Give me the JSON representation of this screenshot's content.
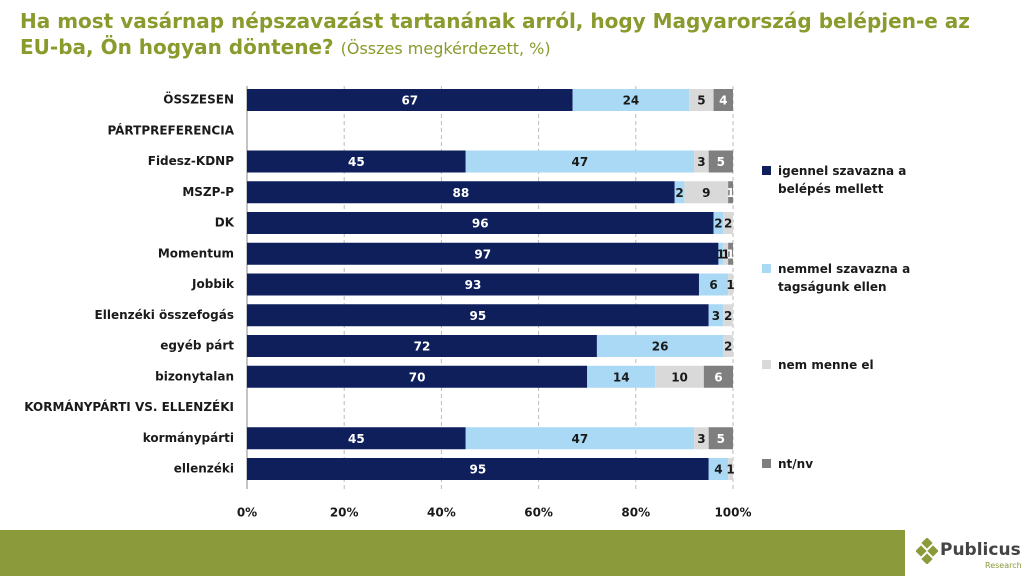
{
  "chart_data": {
    "type": "stacked-barh",
    "title": "Ha most vasárnap népszavazást tartanának arról, hogy Magyarország belépjen-e az EU-ba, Ön hogyan döntene?",
    "subtitle": "(Összes megkérdezett, %)",
    "categories": [
      "ÖSSZESEN",
      "PÁRTPREFERENCIA",
      "Fidesz-KDNP",
      "MSZP-P",
      "DK",
      "Momentum",
      "Jobbik",
      "Ellenzéki összefogás",
      "egyéb párt",
      "bizonytalan",
      "KORMÁNYPÁRTI VS. ELLENZÉKI",
      "kormánypárti",
      "ellenzéki"
    ],
    "series": [
      {
        "name": "igennel szavazna a belépés mellett",
        "color": "#0e1f5b",
        "values": [
          67,
          null,
          45,
          88,
          96,
          97,
          93,
          95,
          72,
          70,
          null,
          45,
          95
        ]
      },
      {
        "name": "nemmel szavazna a tagságunk ellen",
        "color": "#a9d9f5",
        "values": [
          24,
          null,
          47,
          2,
          2,
          1,
          6,
          3,
          26,
          14,
          null,
          47,
          4
        ]
      },
      {
        "name": "nem menne el",
        "color": "#d9d9d9",
        "values": [
          5,
          null,
          3,
          9,
          2,
          1,
          1,
          2,
          2,
          10,
          null,
          3,
          1
        ]
      },
      {
        "name": "nt/nv",
        "color": "#7f7f7f",
        "values": [
          4,
          null,
          5,
          1,
          null,
          1,
          null,
          null,
          null,
          6,
          null,
          5,
          null
        ]
      }
    ],
    "xlim": [
      0,
      100
    ],
    "xticks": [
      {
        "value": 0,
        "label": "0%"
      },
      {
        "value": 20,
        "label": "20%"
      },
      {
        "value": 40,
        "label": "40%"
      },
      {
        "value": 60,
        "label": "60%"
      },
      {
        "value": 80,
        "label": "80%"
      },
      {
        "value": 100,
        "label": "100%"
      }
    ],
    "grid": true,
    "legend": "right"
  },
  "footer": {
    "brand": "Publicus",
    "tagline": "Research"
  }
}
